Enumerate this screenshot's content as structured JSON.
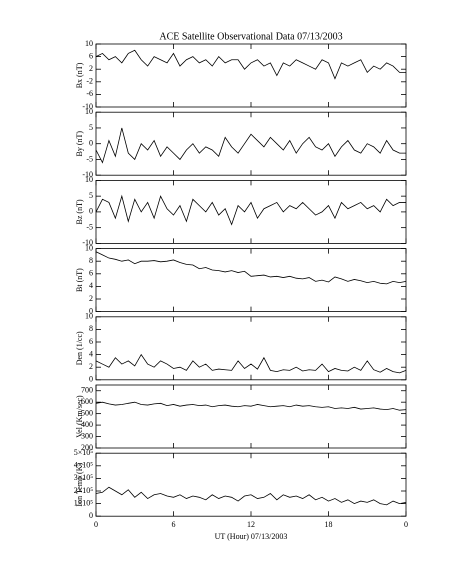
{
  "chart_data": [
    {
      "type": "line",
      "title": "ACE Satellite Observational Data   07/13/2003",
      "ylabel": "Bx (nT)",
      "xlim": [
        0,
        24
      ],
      "ylim": [
        -10,
        10
      ],
      "yticks": [
        -10,
        -6,
        -2,
        2,
        6,
        10
      ],
      "color": "#000000",
      "x": [
        0,
        0.5,
        1,
        1.5,
        2,
        2.5,
        3,
        3.5,
        4,
        4.5,
        5,
        5.5,
        6,
        6.5,
        7,
        7.5,
        8,
        8.5,
        9,
        9.5,
        10,
        10.5,
        11,
        11.5,
        12,
        12.5,
        13,
        13.5,
        14,
        14.5,
        15,
        15.5,
        16,
        16.5,
        17,
        17.5,
        18,
        18.5,
        19,
        19.5,
        20,
        20.5,
        21,
        21.5,
        22,
        22.5,
        23,
        23.5,
        24
      ],
      "values": [
        6,
        7,
        5,
        6,
        4,
        7,
        8,
        5,
        3,
        6,
        5,
        4,
        7,
        3,
        5,
        6,
        4,
        5,
        3,
        6,
        4,
        5,
        5,
        2,
        4,
        5,
        3,
        4,
        0,
        4,
        3,
        5,
        4,
        3,
        2,
        5,
        4,
        -1,
        4,
        3,
        4,
        5,
        1,
        3,
        2,
        4,
        3,
        1,
        1
      ]
    },
    {
      "type": "line",
      "ylabel": "By (nT)",
      "xlim": [
        0,
        24
      ],
      "ylim": [
        -10,
        10
      ],
      "yticks": [
        -10,
        -5,
        0,
        5,
        10
      ],
      "color": "#000000",
      "x": [
        0,
        0.5,
        1,
        1.5,
        2,
        2.5,
        3,
        3.5,
        4,
        4.5,
        5,
        5.5,
        6,
        6.5,
        7,
        7.5,
        8,
        8.5,
        9,
        9.5,
        10,
        10.5,
        11,
        11.5,
        12,
        12.5,
        13,
        13.5,
        14,
        14.5,
        15,
        15.5,
        16,
        16.5,
        17,
        17.5,
        18,
        18.5,
        19,
        19.5,
        20,
        20.5,
        21,
        21.5,
        22,
        22.5,
        23,
        23.5,
        24
      ],
      "values": [
        -2,
        -6,
        1,
        -4,
        5,
        -3,
        -5,
        0,
        -2,
        1,
        -4,
        -1,
        -3,
        -5,
        -2,
        0,
        -3,
        -1,
        -2,
        -4,
        2,
        -1,
        -3,
        0,
        3,
        1,
        -1,
        2,
        0,
        -2,
        1,
        -3,
        0,
        2,
        -1,
        -2,
        0,
        -4,
        -1,
        1,
        -2,
        -3,
        0,
        -1,
        -3,
        1,
        -2,
        -3,
        -3
      ]
    },
    {
      "type": "line",
      "ylabel": "Bz (nT)",
      "xlim": [
        0,
        24
      ],
      "ylim": [
        -10,
        10
      ],
      "yticks": [
        -10,
        -5,
        0,
        5,
        10
      ],
      "color": "#000000",
      "x": [
        0,
        0.5,
        1,
        1.5,
        2,
        2.5,
        3,
        3.5,
        4,
        4.5,
        5,
        5.5,
        6,
        6.5,
        7,
        7.5,
        8,
        8.5,
        9,
        9.5,
        10,
        10.5,
        11,
        11.5,
        12,
        12.5,
        13,
        13.5,
        14,
        14.5,
        15,
        15.5,
        16,
        16.5,
        17,
        17.5,
        18,
        18.5,
        19,
        19.5,
        20,
        20.5,
        21,
        21.5,
        22,
        22.5,
        23,
        23.5,
        24
      ],
      "values": [
        0,
        4,
        3,
        -2,
        5,
        -3,
        4,
        0,
        3,
        -2,
        5,
        1,
        -1,
        2,
        -3,
        4,
        2,
        0,
        3,
        -1,
        1,
        -4,
        2,
        0,
        3,
        -2,
        1,
        2,
        3,
        0,
        2,
        1,
        3,
        1,
        -1,
        0,
        2,
        -2,
        3,
        1,
        2,
        3,
        1,
        2,
        0,
        4,
        2,
        3,
        3
      ]
    },
    {
      "type": "line",
      "ylabel": "Bt (nT)",
      "xlim": [
        0,
        24
      ],
      "ylim": [
        0,
        10
      ],
      "yticks": [
        0,
        2,
        4,
        6,
        8,
        10
      ],
      "color": "#000000",
      "x": [
        0,
        0.5,
        1,
        1.5,
        2,
        2.5,
        3,
        3.5,
        4,
        4.5,
        5,
        5.5,
        6,
        6.5,
        7,
        7.5,
        8,
        8.5,
        9,
        9.5,
        10,
        10.5,
        11,
        11.5,
        12,
        12.5,
        13,
        13.5,
        14,
        14.5,
        15,
        15.5,
        16,
        16.5,
        17,
        17.5,
        18,
        18.5,
        19,
        19.5,
        20,
        20.5,
        21,
        21.5,
        22,
        22.5,
        23,
        23.5,
        24
      ],
      "values": [
        9.5,
        9,
        8.5,
        8.3,
        8,
        8.2,
        7.6,
        8,
        8,
        8.1,
        7.9,
        8,
        8.2,
        7.8,
        7.5,
        7.4,
        6.8,
        7,
        6.6,
        6.5,
        6.3,
        6.5,
        6.2,
        6.4,
        5.6,
        5.7,
        5.8,
        5.5,
        5.6,
        5.4,
        5.6,
        5.3,
        5.2,
        5.4,
        4.8,
        5,
        4.7,
        5.5,
        5.2,
        4.8,
        5.1,
        4.9,
        4.6,
        4.8,
        4.5,
        4.4,
        4.8,
        4.6,
        4.8
      ]
    },
    {
      "type": "line",
      "ylabel": "Den (1/cc)",
      "xlim": [
        0,
        24
      ],
      "ylim": [
        0,
        10
      ],
      "yticks": [
        0,
        2,
        4,
        6,
        8,
        10
      ],
      "color": "#000000",
      "x": [
        0,
        0.5,
        1,
        1.5,
        2,
        2.5,
        3,
        3.5,
        4,
        4.5,
        5,
        5.5,
        6,
        6.5,
        7,
        7.5,
        8,
        8.5,
        9,
        9.5,
        10,
        10.5,
        11,
        11.5,
        12,
        12.5,
        13,
        13.5,
        14,
        14.5,
        15,
        15.5,
        16,
        16.5,
        17,
        17.5,
        18,
        18.5,
        19,
        19.5,
        20,
        20.5,
        21,
        21.5,
        22,
        22.5,
        23,
        23.5,
        24
      ],
      "values": [
        3,
        2.5,
        2,
        3.5,
        2.5,
        3,
        2.2,
        4,
        2.5,
        2,
        3,
        2.5,
        1.8,
        2,
        1.5,
        3,
        2,
        2.5,
        1.5,
        1.7,
        1.6,
        1.5,
        3,
        1.8,
        2.5,
        1.7,
        3.5,
        1.5,
        1.3,
        1.6,
        1.5,
        2,
        1.4,
        1.6,
        1.5,
        2.5,
        1.3,
        1.8,
        1.5,
        1.4,
        2,
        1.5,
        3,
        1.6,
        1.2,
        1.8,
        1.3,
        1.1,
        1.5
      ]
    },
    {
      "type": "line",
      "ylabel": "Vel (Km/sec)",
      "xlim": [
        0,
        24
      ],
      "ylim": [
        200,
        750
      ],
      "yticks": [
        200,
        300,
        400,
        500,
        600,
        700
      ],
      "color": "#000000",
      "x": [
        0,
        0.5,
        1,
        1.5,
        2,
        2.5,
        3,
        3.5,
        4,
        4.5,
        5,
        5.5,
        6,
        6.5,
        7,
        7.5,
        8,
        8.5,
        9,
        9.5,
        10,
        10.5,
        11,
        11.5,
        12,
        12.5,
        13,
        13.5,
        14,
        14.5,
        15,
        15.5,
        16,
        16.5,
        17,
        17.5,
        18,
        18.5,
        19,
        19.5,
        20,
        20.5,
        21,
        21.5,
        22,
        22.5,
        23,
        23.5,
        24
      ],
      "values": [
        590,
        600,
        585,
        575,
        580,
        590,
        600,
        580,
        575,
        585,
        590,
        570,
        580,
        565,
        575,
        580,
        570,
        575,
        560,
        570,
        575,
        565,
        560,
        570,
        565,
        580,
        570,
        560,
        565,
        570,
        560,
        575,
        565,
        570,
        560,
        555,
        560,
        545,
        550,
        545,
        555,
        540,
        545,
        550,
        540,
        535,
        545,
        530,
        535
      ]
    },
    {
      "type": "line",
      "ylabel": "Ion Temp (K)",
      "xlabel": "UT (Hour)   07/13/2003",
      "xlim": [
        0,
        24
      ],
      "xticks": [
        0,
        6,
        12,
        18,
        {
          "value": 24,
          "label": "0"
        }
      ],
      "ylim": [
        0,
        500000
      ],
      "yticks": [
        0,
        {
          "value": 100000,
          "label": "1×10⁵"
        },
        {
          "value": 200000,
          "label": "2×10⁵"
        },
        {
          "value": 300000,
          "label": "3×10⁵"
        },
        {
          "value": 400000,
          "label": "4×10⁵"
        },
        {
          "value": 500000,
          "label": "5×10⁵"
        }
      ],
      "color": "#000000",
      "x": [
        0,
        0.5,
        1,
        1.5,
        2,
        2.5,
        3,
        3.5,
        4,
        4.5,
        5,
        5.5,
        6,
        6.5,
        7,
        7.5,
        8,
        8.5,
        9,
        9.5,
        10,
        10.5,
        11,
        11.5,
        12,
        12.5,
        13,
        13.5,
        14,
        14.5,
        15,
        15.5,
        16,
        16.5,
        17,
        17.5,
        18,
        18.5,
        19,
        19.5,
        20,
        20.5,
        21,
        21.5,
        22,
        22.5,
        23,
        23.5,
        24
      ],
      "values": [
        180000,
        190000,
        230000,
        200000,
        170000,
        210000,
        150000,
        190000,
        140000,
        170000,
        180000,
        160000,
        150000,
        170000,
        140000,
        160000,
        150000,
        130000,
        170000,
        140000,
        160000,
        150000,
        120000,
        160000,
        170000,
        140000,
        150000,
        180000,
        130000,
        170000,
        150000,
        160000,
        140000,
        170000,
        130000,
        150000,
        120000,
        140000,
        110000,
        130000,
        100000,
        120000,
        110000,
        130000,
        100000,
        90000,
        120000,
        100000,
        110000
      ]
    }
  ]
}
